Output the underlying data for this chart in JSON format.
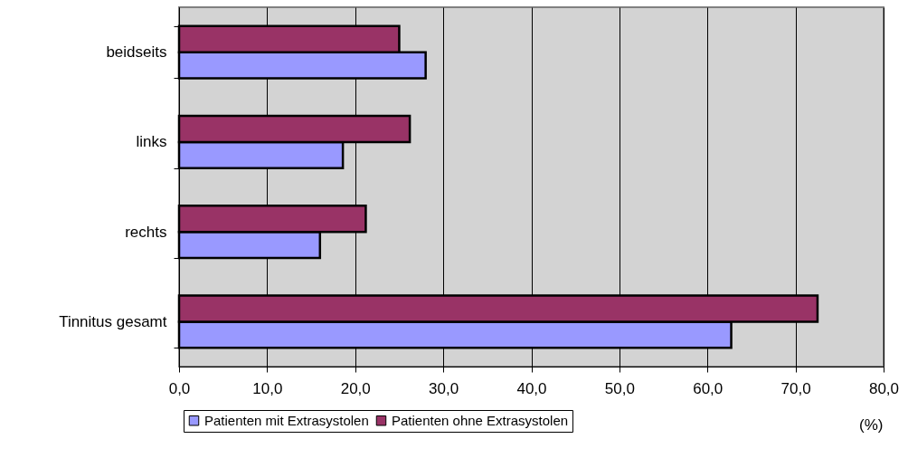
{
  "chart_data": {
    "type": "bar",
    "orientation": "horizontal",
    "xlabel": "(%)",
    "categories": [
      "beidseits",
      "links",
      "rechts",
      "Tinnitus gesamt"
    ],
    "series": [
      {
        "name": "Patienten mit Extrasystolen",
        "color": "#9999ff",
        "values": [
          28.0,
          18.6,
          16.0,
          62.7
        ]
      },
      {
        "name": "Patienten ohne Extrasystolen",
        "color": "#993366",
        "values": [
          25.0,
          26.2,
          21.2,
          72.5
        ]
      }
    ],
    "xlim": [
      0,
      80
    ],
    "xticks": [
      {
        "value": 0,
        "label": "0,0"
      },
      {
        "value": 10,
        "label": "10,0"
      },
      {
        "value": 20,
        "label": "20,0"
      },
      {
        "value": 30,
        "label": "30,0"
      },
      {
        "value": 40,
        "label": "40,0"
      },
      {
        "value": 50,
        "label": "50,0"
      },
      {
        "value": 60,
        "label": "60,0"
      },
      {
        "value": 70,
        "label": "70,0"
      },
      {
        "value": 80,
        "label": "80,0"
      }
    ],
    "grid": "x",
    "legend": "bottom"
  }
}
